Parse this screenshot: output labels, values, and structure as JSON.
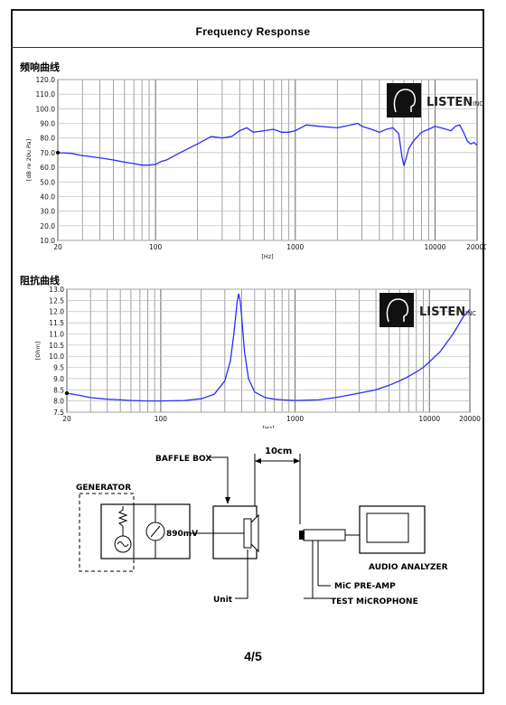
{
  "page": {
    "title": "Frequency    Response",
    "page_number": "4/5"
  },
  "sections": {
    "frequency_label": "频响曲线",
    "impedance_label": "阻抗曲线"
  },
  "logo": {
    "brand": "LISTEN",
    "suffix": "INC"
  },
  "chart_data": [
    {
      "type": "line",
      "name": "frequency-response",
      "ylabel": "[dB re 20u Pa]",
      "xlabel": "[Hz]",
      "xscale": "log",
      "xlim": [
        20,
        20000
      ],
      "ylim": [
        10,
        120
      ],
      "grid": true,
      "yticks": [
        "120.0",
        "110.0",
        "100.0",
        "90.0",
        "80.0",
        "70.0",
        "60.0",
        "50.0",
        "40.0",
        "30.0",
        "20.0",
        "10.0"
      ],
      "xticks": [
        "20",
        "100",
        "1000",
        "10000",
        "20000"
      ],
      "line_color": "#2b2bff",
      "x": [
        20,
        25,
        30,
        40,
        50,
        60,
        70,
        80,
        90,
        100,
        110,
        120,
        150,
        200,
        250,
        300,
        350,
        400,
        450,
        500,
        600,
        700,
        800,
        900,
        1000,
        1200,
        1500,
        2000,
        2500,
        2800,
        3000,
        3500,
        4000,
        4500,
        5000,
        5500,
        5800,
        6000,
        6500,
        7000,
        8000,
        9000,
        10000,
        11000,
        12000,
        13000,
        14000,
        15000,
        16000,
        17000,
        18000,
        19000,
        20000
      ],
      "y": [
        70,
        69.5,
        68,
        66.5,
        65,
        63.5,
        62.5,
        61.5,
        61.5,
        62,
        64,
        65,
        70,
        76,
        81,
        80,
        81,
        85,
        87,
        84,
        85,
        86,
        84,
        84,
        85,
        89,
        88,
        87,
        89,
        90,
        88,
        86,
        84,
        86,
        87,
        83,
        67,
        61,
        73,
        78,
        84,
        86,
        88,
        87,
        86,
        85,
        88,
        89,
        84,
        78,
        76,
        77,
        75
      ]
    },
    {
      "type": "line",
      "name": "impedance",
      "ylabel": "[Ohm]",
      "xlabel": "[Hz]",
      "xscale": "log",
      "xlim": [
        20,
        20000
      ],
      "ylim": [
        7.5,
        13.0
      ],
      "grid": true,
      "yticks": [
        "13.0",
        "12.5",
        "12.0",
        "11.5",
        "11.0",
        "10.5",
        "10.0",
        "9.5",
        "9.0",
        "8.5",
        "8.0",
        "7.5"
      ],
      "xticks": [
        "20",
        "100",
        "1000",
        "10000",
        "20000"
      ],
      "line_color": "#2b2bff",
      "x": [
        20,
        25,
        30,
        40,
        50,
        60,
        80,
        100,
        150,
        200,
        250,
        300,
        330,
        350,
        370,
        380,
        390,
        400,
        420,
        450,
        500,
        600,
        700,
        800,
        1000,
        1500,
        2000,
        3000,
        4000,
        5000,
        6000,
        7000,
        8000,
        9000,
        10000,
        12000,
        15000,
        18000,
        20000
      ],
      "y": [
        8.35,
        8.25,
        8.15,
        8.08,
        8.05,
        8.02,
        8.0,
        8.0,
        8.02,
        8.1,
        8.3,
        8.9,
        9.8,
        11.0,
        12.4,
        12.8,
        12.5,
        11.8,
        10.2,
        9.0,
        8.4,
        8.15,
        8.08,
        8.05,
        8.02,
        8.05,
        8.15,
        8.35,
        8.5,
        8.7,
        8.9,
        9.1,
        9.3,
        9.5,
        9.75,
        10.2,
        11.0,
        11.8,
        12.1
      ]
    }
  ],
  "diagram": {
    "distance": "10cm",
    "baffle_box": "BAFFLE BOX",
    "generator": "GENERATOR",
    "voltage": "890mV",
    "unit": "Unit",
    "audio_analyzer": "AUDIO ANALYZER",
    "mic_preamp": "MiC PRE-AMP",
    "test_mic": "TEST MiCROPHONE"
  }
}
